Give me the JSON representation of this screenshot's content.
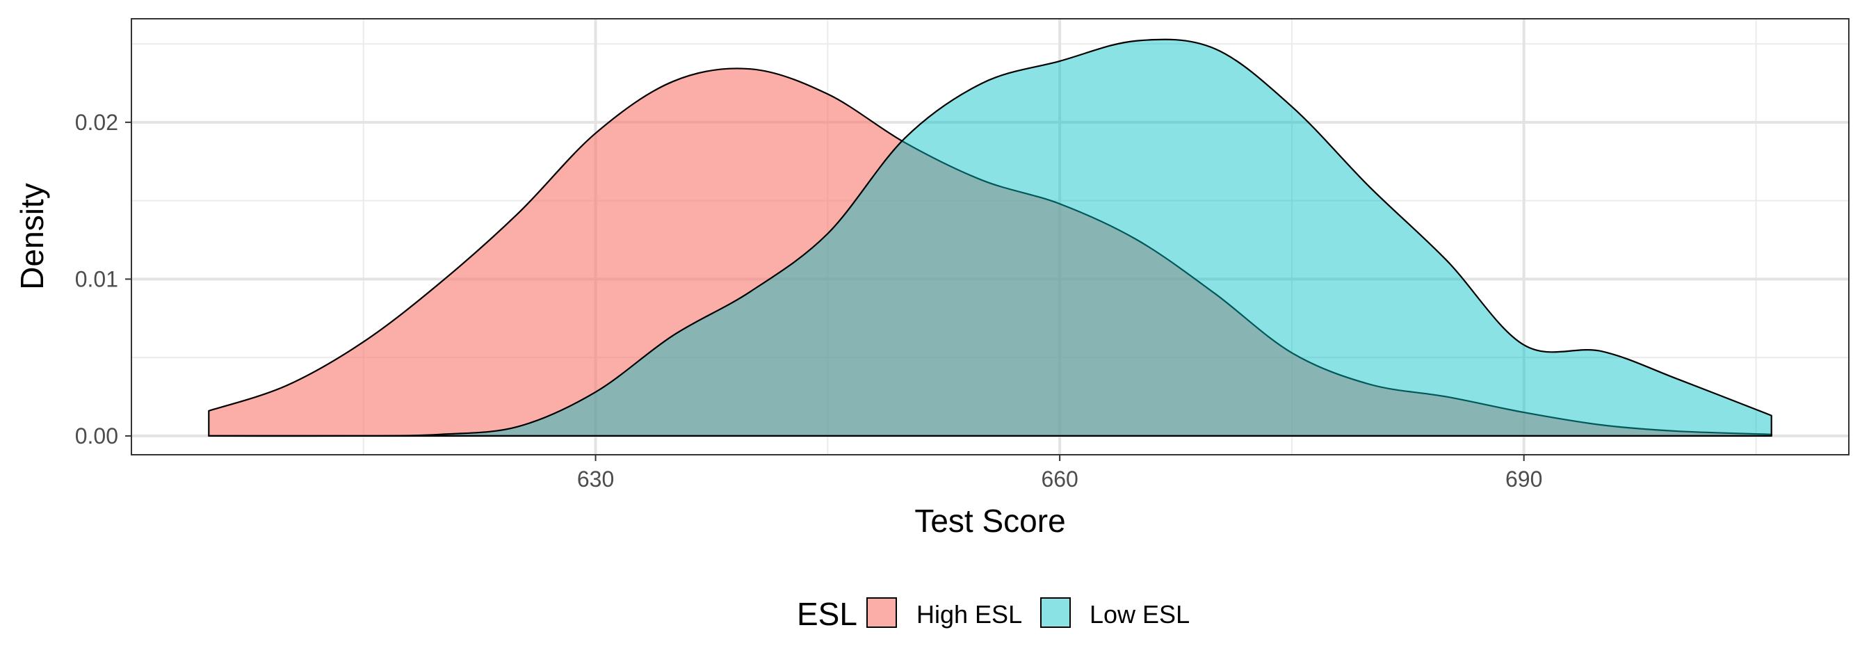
{
  "chart_data": {
    "type": "area",
    "xlabel": "Test Score",
    "ylabel": "Density",
    "xlim": [
      600,
      711
    ],
    "ylim": [
      -0.0012,
      0.0266
    ],
    "x_ticks": [
      630,
      660,
      690
    ],
    "x_tick_labels": [
      "630",
      "660",
      "690"
    ],
    "x_minor_ticks": [
      615,
      645,
      675,
      705
    ],
    "y_ticks": [
      0.0,
      0.01,
      0.02
    ],
    "y_tick_labels": [
      "0.00",
      "0.01",
      "0.02"
    ],
    "y_minor_ticks": [
      0.005,
      0.015,
      0.025
    ],
    "grid": true,
    "legend": {
      "title": "ESL",
      "position": "bottom"
    },
    "series": [
      {
        "name": "High ESL",
        "color": "#F8766D",
        "fill_opacity": 0.6,
        "x": [
          605,
          610,
          615,
          620,
          625,
          630,
          635,
          640,
          645,
          650,
          655,
          660,
          665,
          670,
          675,
          680,
          685,
          690,
          695,
          700,
          706
        ],
        "y": [
          0.0016,
          0.0032,
          0.006,
          0.0098,
          0.0142,
          0.0193,
          0.0226,
          0.0234,
          0.0218,
          0.0187,
          0.0163,
          0.0148,
          0.0125,
          0.0091,
          0.0053,
          0.0033,
          0.0025,
          0.0015,
          0.0007,
          0.0003,
          0.0001
        ]
      },
      {
        "name": "Low ESL",
        "color": "#00BFC4",
        "fill_opacity": 0.46,
        "x": [
          605,
          615,
          620,
          625,
          630,
          635,
          640,
          645,
          650,
          655,
          660,
          665,
          670,
          675,
          680,
          685,
          690,
          695,
          700,
          706
        ],
        "y": [
          0.0,
          0.0,
          0.0001,
          0.0006,
          0.0028,
          0.0064,
          0.0092,
          0.0129,
          0.019,
          0.0225,
          0.0239,
          0.0252,
          0.0247,
          0.021,
          0.0159,
          0.0112,
          0.0058,
          0.0054,
          0.0036,
          0.0013
        ]
      }
    ]
  }
}
